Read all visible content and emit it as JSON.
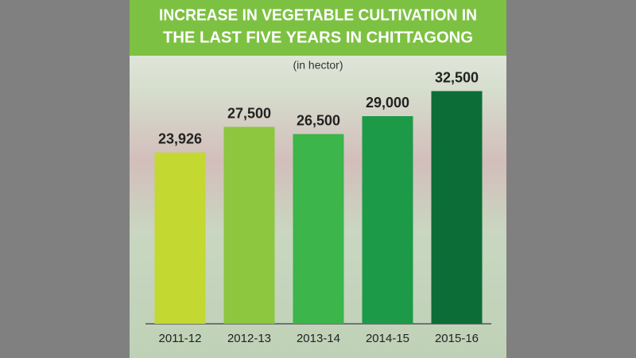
{
  "chart_data": {
    "type": "bar",
    "title": [
      "INCREASE IN VEGETABLE CULTIVATION IN",
      "THE LAST FIVE YEARS IN CHITTAGONG"
    ],
    "subtitle": "(in hector)",
    "categories": [
      "2011-12",
      "2012-13",
      "2013-14",
      "2014-15",
      "2015-16"
    ],
    "values": [
      23926,
      27500,
      26500,
      29000,
      32500
    ],
    "value_labels": [
      "23,926",
      "27,500",
      "26,500",
      "29,000",
      "32,500"
    ],
    "colors": [
      "#c3d831",
      "#8dc63f",
      "#3cb54a",
      "#1c9a48",
      "#0c6d37"
    ],
    "ylim": [
      0,
      36000
    ]
  }
}
